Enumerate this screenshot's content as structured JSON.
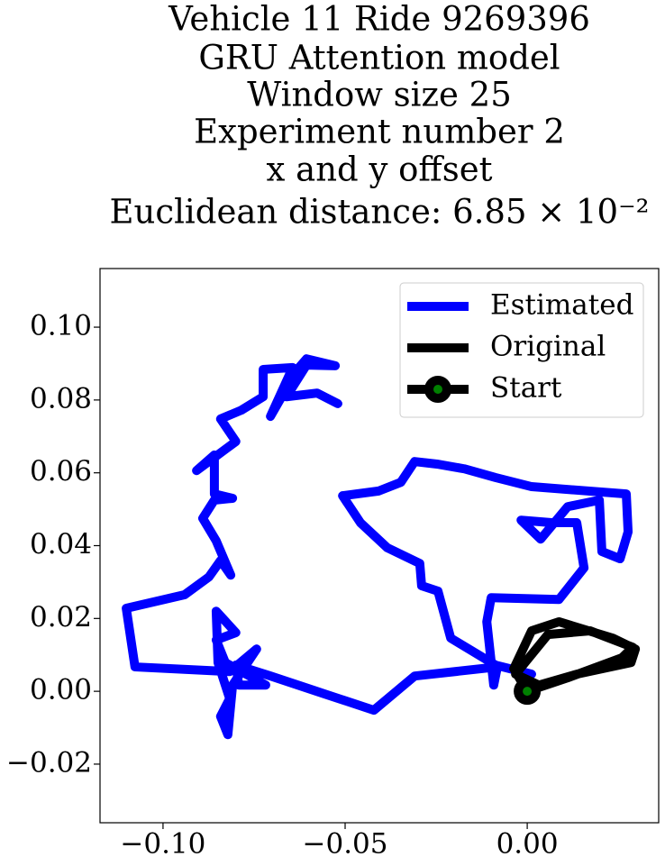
{
  "chart_data": {
    "type": "line",
    "title": [
      "Vehicle 11 Ride 9269396",
      "GRU Attention model",
      "Window size 25",
      "Experiment number 2",
      "x and y offset",
      "Euclidean distance: 6.85 × 10⁻²"
    ],
    "xlim": [
      -0.1173,
      0.0361
    ],
    "ylim": [
      -0.0361,
      0.1161
    ],
    "xticks": [
      {
        "value": -0.1,
        "label": "−0.10"
      },
      {
        "value": -0.05,
        "label": "−0.05"
      },
      {
        "value": 0,
        "label": "0.00"
      }
    ],
    "yticks": [
      {
        "value": -0.02,
        "label": "−0.02"
      },
      {
        "value": 0,
        "label": "0.00"
      },
      {
        "value": 0.02,
        "label": "0.02"
      },
      {
        "value": 0.04,
        "label": "0.04"
      },
      {
        "value": 0.06,
        "label": "0.06"
      },
      {
        "value": 0.08,
        "label": "0.08"
      },
      {
        "value": 0.1,
        "label": "0.10"
      }
    ],
    "legend": "upper right",
    "series": [
      {
        "name": "Estimated",
        "color": "#0000ff",
        "x": [
          0.0012,
          -0.0087,
          -0.021,
          -0.0245,
          -0.029,
          -0.0295,
          -0.0384,
          -0.0458,
          -0.0507,
          -0.0408,
          -0.0347,
          -0.0309,
          -0.0248,
          -0.0173,
          -0.0087,
          0.0012,
          0.0272,
          0.0277,
          0.0255,
          0.0205,
          0.0198,
          0.0111,
          0.0037,
          -0.0017,
          0.0067,
          0.0136,
          0.0156,
          0.0087,
          -0.0099,
          -0.0111,
          -0.0092,
          -0.0082,
          -0.0309,
          -0.0421,
          -0.0557,
          -0.0705,
          -0.08,
          -0.0792,
          -0.0718,
          -0.0829,
          -0.0854,
          -0.08,
          -0.0854,
          -0.0849,
          -0.0817,
          -0.0842,
          -0.0822,
          -0.0809,
          -0.0743,
          -0.0817,
          -0.1077,
          -0.1101,
          -0.0941,
          -0.0874,
          -0.0842,
          -0.0814,
          -0.0854,
          -0.0891,
          -0.0859,
          -0.0809,
          -0.0859,
          -0.0859,
          -0.0908,
          -0.08,
          -0.0842,
          -0.0785,
          -0.0725,
          -0.0725,
          -0.0644,
          -0.0705,
          -0.0631,
          -0.0606,
          -0.0527,
          -0.0606,
          -0.0661,
          -0.0577,
          -0.052
        ],
        "y": [
          0.0047,
          0.0072,
          0.0146,
          0.0275,
          0.029,
          0.0351,
          0.0394,
          0.0463,
          0.0537,
          0.055,
          0.0574,
          0.0631,
          0.0624,
          0.0611,
          0.0587,
          0.0562,
          0.0542,
          0.0438,
          0.0364,
          0.0384,
          0.0525,
          0.0507,
          0.0418,
          0.047,
          0.0463,
          0.0463,
          0.0339,
          0.0252,
          0.0257,
          0.0191,
          0.0017,
          0.0067,
          0.0042,
          -0.0052,
          -0.0007,
          0.0042,
          0.0072,
          0.0017,
          0.0017,
          0.0079,
          0.0141,
          0.0161,
          0.022,
          0.0079,
          -0.002,
          -0.0069,
          -0.0119,
          0.0017,
          0.0116,
          0.0054,
          0.0067,
          0.0228,
          0.0265,
          0.0314,
          0.0359,
          0.0319,
          0.0413,
          0.0475,
          0.0525,
          0.053,
          0.0542,
          0.0649,
          0.0606,
          0.0686,
          0.0748,
          0.0772,
          0.0809,
          0.0884,
          0.0889,
          0.0755,
          0.0884,
          0.0913,
          0.0894,
          0.0896,
          0.0809,
          0.0819,
          0.079
        ]
      },
      {
        "name": "Original",
        "color": "#000000",
        "x": [
          0,
          -0.0037,
          0.0012,
          0.0087,
          0.0235,
          0.0297,
          0.0285,
          0.0136,
          0.0032,
          -0.0032,
          0.0057,
          0.0173,
          0.029,
          0.026,
          0.0111,
          0
        ],
        "y": [
          0,
          0.0062,
          0.0166,
          0.0191,
          0.0146,
          0.0116,
          0.0079,
          0.0047,
          0.0017,
          0.0047,
          0.0156,
          0.0166,
          0.0121,
          0.0092,
          0.0037,
          0
        ]
      },
      {
        "name": "Start",
        "color": "#000000",
        "marker_color": "#008000",
        "x": [
          0
        ],
        "y": [
          0
        ]
      }
    ]
  }
}
